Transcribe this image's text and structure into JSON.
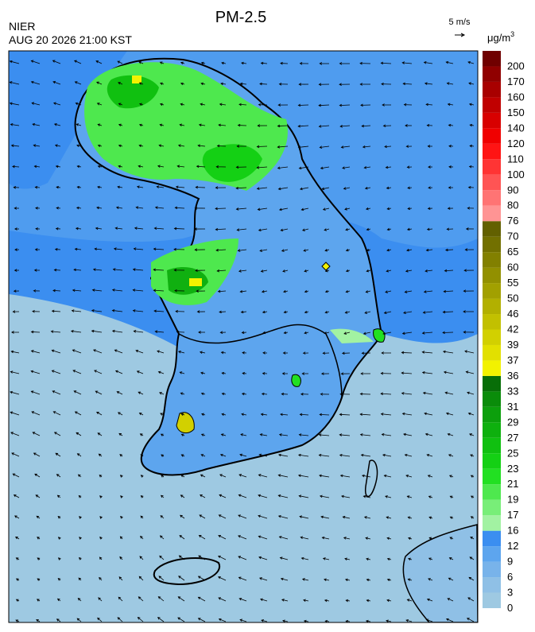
{
  "header": {
    "title": "PM-2.5",
    "agency": "NIER",
    "datetime": "AUG 20 2026 21:00 KST",
    "wind_scale": "5 m/s"
  },
  "legend": {
    "unit": "μg/m",
    "unit_sup": "3",
    "bands": [
      {
        "value": 0,
        "color": "#9ec9e2"
      },
      {
        "value": 3,
        "color": "#8fc0e6"
      },
      {
        "value": 6,
        "color": "#78b3ea"
      },
      {
        "value": 9,
        "color": "#5da5ee"
      },
      {
        "value": 12,
        "color": "#3b8ef0"
      },
      {
        "value": 16,
        "color": "#a2f2a2"
      },
      {
        "value": 17,
        "color": "#78ee78"
      },
      {
        "value": 19,
        "color": "#4ee84e"
      },
      {
        "value": 21,
        "color": "#22e022"
      },
      {
        "value": 23,
        "color": "#14d014"
      },
      {
        "value": 25,
        "color": "#10c010"
      },
      {
        "value": 27,
        "color": "#0eb00e"
      },
      {
        "value": 29,
        "color": "#0c9f0c"
      },
      {
        "value": 31,
        "color": "#0a8c0a"
      },
      {
        "value": 33,
        "color": "#086e08"
      },
      {
        "value": 36,
        "color": "#f2f200"
      },
      {
        "value": 37,
        "color": "#e2e000"
      },
      {
        "value": 39,
        "color": "#d2d000"
      },
      {
        "value": 42,
        "color": "#c2c000"
      },
      {
        "value": 46,
        "color": "#b2b000"
      },
      {
        "value": 50,
        "color": "#a2a000"
      },
      {
        "value": 55,
        "color": "#929000"
      },
      {
        "value": 60,
        "color": "#828000"
      },
      {
        "value": 65,
        "color": "#727000"
      },
      {
        "value": 70,
        "color": "#626000"
      },
      {
        "value": 76,
        "color": "#ff9494"
      },
      {
        "value": 80,
        "color": "#ff7474"
      },
      {
        "value": 90,
        "color": "#ff5454"
      },
      {
        "value": 100,
        "color": "#ff3434"
      },
      {
        "value": 110,
        "color": "#ff1414"
      },
      {
        "value": 120,
        "color": "#f00000"
      },
      {
        "value": 140,
        "color": "#d80000"
      },
      {
        "value": 150,
        "color": "#c00000"
      },
      {
        "value": 160,
        "color": "#a80000"
      },
      {
        "value": 170,
        "color": "#900000"
      },
      {
        "value": 200,
        "color": "#700000"
      }
    ]
  }
}
